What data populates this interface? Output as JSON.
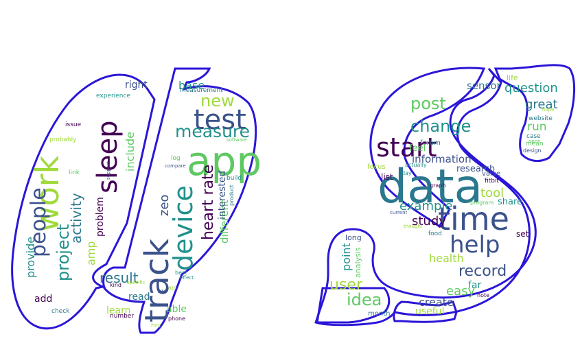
{
  "palette": {
    "outline": "#2b16d8",
    "background": "#ffffff",
    "dark_purple": "#440154",
    "indigo": "#3b528b",
    "teal": "#21918c",
    "green": "#5ec962",
    "lime": "#9fda3a",
    "deep_blue": "#2a788e"
  },
  "wordcloud": {
    "q_words": [
      "work",
      "app",
      "track",
      "device",
      "test",
      "sleep",
      "people",
      "measure",
      "project",
      "heart rate",
      "new",
      "activity",
      "include",
      "zeo",
      "base",
      "problem",
      "amp",
      "result",
      "different",
      "interested",
      "provide",
      "add",
      "learn",
      "read",
      "able",
      "right",
      "build",
      "number",
      "hrv",
      "check",
      "link",
      "support",
      "experience",
      "issue",
      "probably",
      "measurement",
      "log",
      "compare",
      "effect",
      "phone",
      "api",
      "product",
      "software",
      "site",
      "best",
      "kind",
      "specific",
      "point"
    ],
    "s_words": [
      "data",
      "time",
      "help",
      "start",
      "change",
      "post",
      "question",
      "record",
      "information",
      "idea",
      "user",
      "tool",
      "sensor",
      "easy",
      "research",
      "example",
      "study",
      "health",
      "great",
      "run",
      "create",
      "share",
      "set",
      "useful",
      "month",
      "analysis",
      "long",
      "point",
      "list",
      "focus",
      "forum",
      "feel",
      "value",
      "far",
      "note",
      "life",
      "case",
      "mean",
      "design",
      "day",
      "fitbit",
      "thought",
      "food",
      "program",
      "current",
      "actually",
      "graph",
      "hope",
      "website",
      "open"
    ]
  }
}
